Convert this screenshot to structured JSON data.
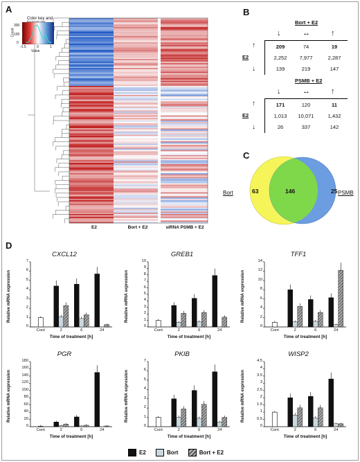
{
  "panels": {
    "a": "A",
    "b": "B",
    "c": "C",
    "d": "D"
  },
  "heatmap": {
    "column_labels": [
      "E2",
      "Bort + E2",
      "siRNA PSMB + E2"
    ],
    "key_title": "Color key and histogram",
    "key_count_label": "Count",
    "key_value_label": "Value",
    "key_y_ticks": [
      "300",
      "100",
      "0"
    ],
    "key_x_ticks": [
      "-1.5",
      "0",
      "1"
    ]
  },
  "table_b1": {
    "title": "Bort + E2",
    "row_label": "E2",
    "rows": [
      [
        "209",
        "74",
        "19"
      ],
      [
        "2,252",
        "7,977",
        "2,287"
      ],
      [
        "139",
        "219",
        "147"
      ]
    ]
  },
  "table_b2": {
    "title": "PSMB + E2",
    "row_label": "E2",
    "rows": [
      [
        "171",
        "120",
        "11"
      ],
      [
        "1,013",
        "10,071",
        "1,432"
      ],
      [
        "26",
        "337",
        "142"
      ]
    ]
  },
  "venn": {
    "left_label": "Bort",
    "right_label": "PSMB",
    "left_only": "63",
    "overlap": "146",
    "right_only": "25"
  },
  "colors": {
    "e2": "#111111",
    "bort": "#c8d8de",
    "bort_e2": "#8a8f94",
    "venn_left": "#f5f55a",
    "venn_right": "#6b9de0",
    "venn_mid": "#7fd84a"
  },
  "chart_data": [
    {
      "type": "bar",
      "title": "CXCL12",
      "xlabel": "Time of treatment [h]",
      "ylabel": "Relative mRNA expression",
      "categories": [
        "Cont",
        "2",
        "6",
        "24"
      ],
      "ylim": [
        0,
        7
      ],
      "yticks": [
        0,
        1,
        2,
        3,
        4,
        5,
        6,
        7
      ],
      "series": [
        {
          "name": "E2",
          "values": [
            1.0,
            4.4,
            4.6,
            5.7
          ]
        },
        {
          "name": "Bort",
          "values": [
            null,
            1.1,
            0.9,
            null
          ]
        },
        {
          "name": "Bort + E2",
          "values": [
            null,
            2.3,
            1.3,
            0.25
          ]
        }
      ]
    },
    {
      "type": "bar",
      "title": "GREB1",
      "xlabel": "Time of treatment [h]",
      "ylabel": "Relative mRNA expression",
      "categories": [
        "Cont",
        "2",
        "6",
        "24"
      ],
      "ylim": [
        0,
        10
      ],
      "yticks": [
        0,
        1,
        2,
        3,
        4,
        5,
        6,
        7,
        8,
        9,
        10
      ],
      "series": [
        {
          "name": "E2",
          "values": [
            1.0,
            3.3,
            4.4,
            7.9
          ]
        },
        {
          "name": "Bort",
          "values": [
            null,
            0.7,
            0.8,
            null
          ]
        },
        {
          "name": "Bort + E2",
          "values": [
            null,
            2.1,
            2.2,
            1.5
          ]
        }
      ]
    },
    {
      "type": "bar",
      "title": "TFF1",
      "xlabel": "Time of treatment [h]",
      "ylabel": "Relative mRNA expression",
      "categories": [
        "Cont",
        "2",
        "6",
        "24"
      ],
      "ylim": [
        0,
        14
      ],
      "yticks": [
        0,
        2,
        4,
        6,
        8,
        10,
        12,
        14
      ],
      "series": [
        {
          "name": "E2",
          "values": [
            1.0,
            8.0,
            5.9,
            6.3
          ]
        },
        {
          "name": "Bort",
          "values": [
            null,
            1.1,
            1.2,
            0.5
          ]
        },
        {
          "name": "Bort + E2",
          "values": [
            null,
            4.4,
            3.1,
            12.2
          ]
        }
      ]
    },
    {
      "type": "bar",
      "title": "PGR",
      "xlabel": "Time of treatment [h]",
      "ylabel": "Relative mRNA expression",
      "categories": [
        "Cont",
        "2",
        "6",
        "24"
      ],
      "ylim": [
        0,
        180
      ],
      "yticks": [
        0,
        20,
        40,
        60,
        80,
        100,
        120,
        140,
        160,
        180
      ],
      "series": [
        {
          "name": "E2",
          "values": [
            1,
            13,
            27,
            150
          ]
        },
        {
          "name": "Bort",
          "values": [
            null,
            3,
            2,
            null
          ]
        },
        {
          "name": "Bort + E2",
          "values": [
            null,
            7,
            4,
            2
          ]
        }
      ]
    },
    {
      "type": "bar",
      "title": "PKIB",
      "xlabel": "Time of treatment [h]",
      "ylabel": "Relative mRNA expression",
      "categories": [
        "Cont",
        "2",
        "6",
        "24"
      ],
      "ylim": [
        0,
        7
      ],
      "yticks": [
        0,
        1,
        2,
        3,
        4,
        5,
        6,
        7
      ],
      "series": [
        {
          "name": "E2",
          "values": [
            1.0,
            3.0,
            3.9,
            5.9
          ]
        },
        {
          "name": "Bort",
          "values": [
            null,
            1.0,
            0.9,
            0.5
          ]
        },
        {
          "name": "Bort + E2",
          "values": [
            null,
            1.9,
            2.4,
            1.0
          ]
        }
      ]
    },
    {
      "type": "bar",
      "title": "WISP2",
      "xlabel": "Time of treatment [h]",
      "ylabel": "Relative mRNA expression",
      "categories": [
        "Cont",
        "2",
        "6",
        "24"
      ],
      "ylim": [
        0,
        4.5
      ],
      "yticks": [
        0,
        0.5,
        1,
        1.5,
        2,
        2.5,
        3,
        3.5,
        4,
        4.5
      ],
      "series": [
        {
          "name": "E2",
          "values": [
            1.0,
            2.0,
            2.1,
            3.3
          ]
        },
        {
          "name": "Bort",
          "values": [
            null,
            0.8,
            0.6,
            0.2
          ]
        },
        {
          "name": "Bort + E2",
          "values": [
            null,
            1.3,
            1.3,
            0.2
          ]
        }
      ]
    }
  ],
  "legend": [
    "E2",
    "Bort",
    "Bort + E2"
  ]
}
